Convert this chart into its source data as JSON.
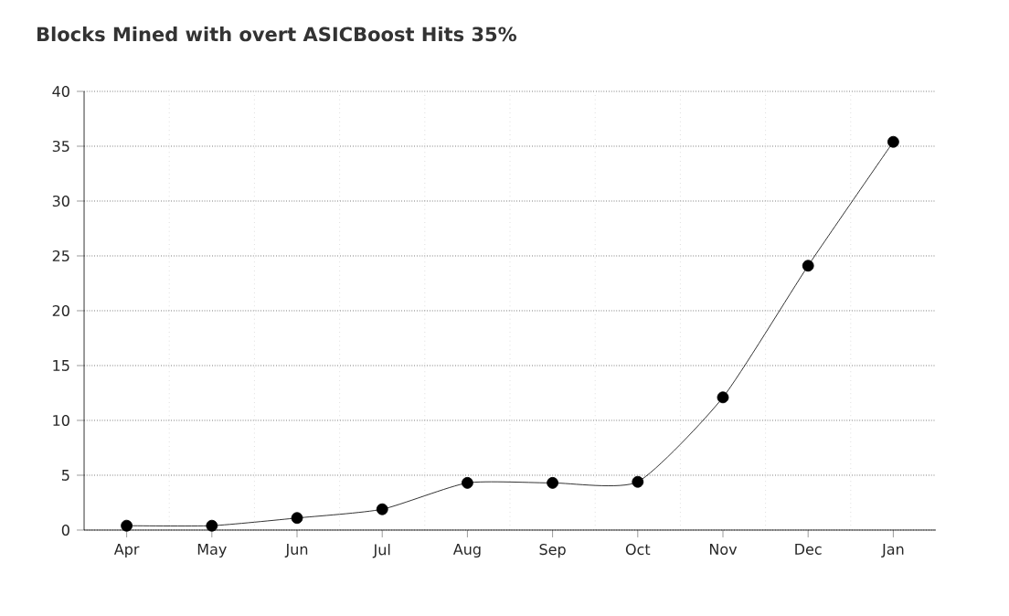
{
  "chart_data": {
    "type": "line",
    "title": "Blocks Mined with overt ASICBoost Hits 35%",
    "categories": [
      "Apr",
      "May",
      "Jun",
      "Jul",
      "Aug",
      "Sep",
      "Oct",
      "Nov",
      "Dec",
      "Jan"
    ],
    "series": [
      {
        "color": "#000000",
        "values": [
          0.4,
          0.4,
          1.1,
          1.9,
          4.3,
          4.3,
          4.4,
          12.1,
          24.1,
          35.4
        ]
      }
    ],
    "ylim": [
      0,
      40
    ],
    "yticks": [
      0,
      5,
      10,
      15,
      20,
      25,
      30,
      35,
      40
    ],
    "grid": true,
    "marker": "circle",
    "line_style": "solid"
  }
}
